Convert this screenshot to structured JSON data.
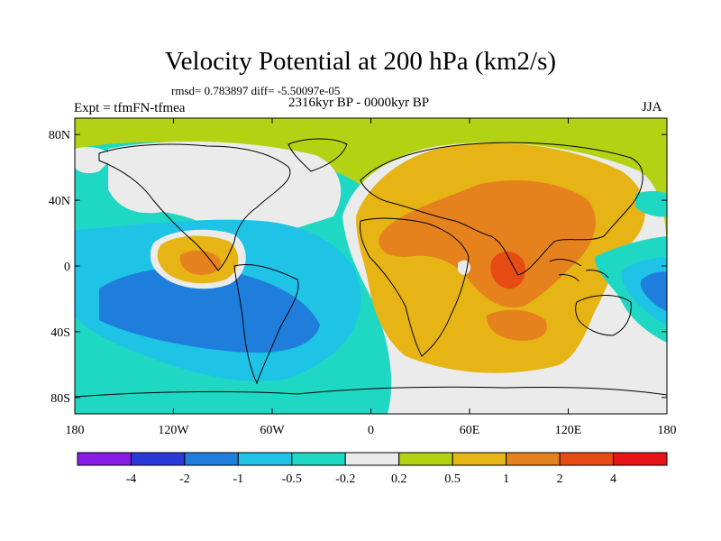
{
  "title": "Velocity Potential at 200 hPa (km2/s)",
  "stats": "rmsd= 0.783897 diff= -5.50097e-05",
  "left_label": "Expt = tfmFN-tfmea",
  "center_label": "2316kyr BP - 0000kyr BP",
  "right_label": "JJA",
  "axes": {
    "y_ticks": [
      {
        "value": 80,
        "label": "80N"
      },
      {
        "value": 40,
        "label": "40N"
      },
      {
        "value": 0,
        "label": "0"
      },
      {
        "value": -40,
        "label": "40S"
      },
      {
        "value": -80,
        "label": "80S"
      }
    ],
    "x_ticks": [
      {
        "value": -180,
        "label": "180"
      },
      {
        "value": -120,
        "label": "120W"
      },
      {
        "value": -60,
        "label": "60W"
      },
      {
        "value": 0,
        "label": "0"
      },
      {
        "value": 60,
        "label": "60E"
      },
      {
        "value": 120,
        "label": "120E"
      },
      {
        "value": 180,
        "label": "180"
      }
    ],
    "lon_range": [
      -180,
      180
    ],
    "lat_range": [
      -90,
      90
    ]
  },
  "colorbar": {
    "colors": [
      "#8a1ee6",
      "#2a3ad8",
      "#1f7ddc",
      "#1ec3e6",
      "#1fd8c4",
      "#ebebeb",
      "#b4d214",
      "#e6b414",
      "#e6821e",
      "#e64b14",
      "#e61414"
    ],
    "labels": [
      "-4",
      "-2",
      "-1",
      "-0.5",
      "-0.2",
      "0.2",
      "0.5",
      "1",
      "2",
      "4"
    ]
  },
  "palette": {
    "green": "#b4d214",
    "cyan": "#1fd8c4",
    "light_blue": "#1ec3e6",
    "blue": "#1f7ddc",
    "white": "#ebebeb",
    "yellow": "#e6b414",
    "orange": "#e6821e",
    "red": "#e64b14"
  }
}
